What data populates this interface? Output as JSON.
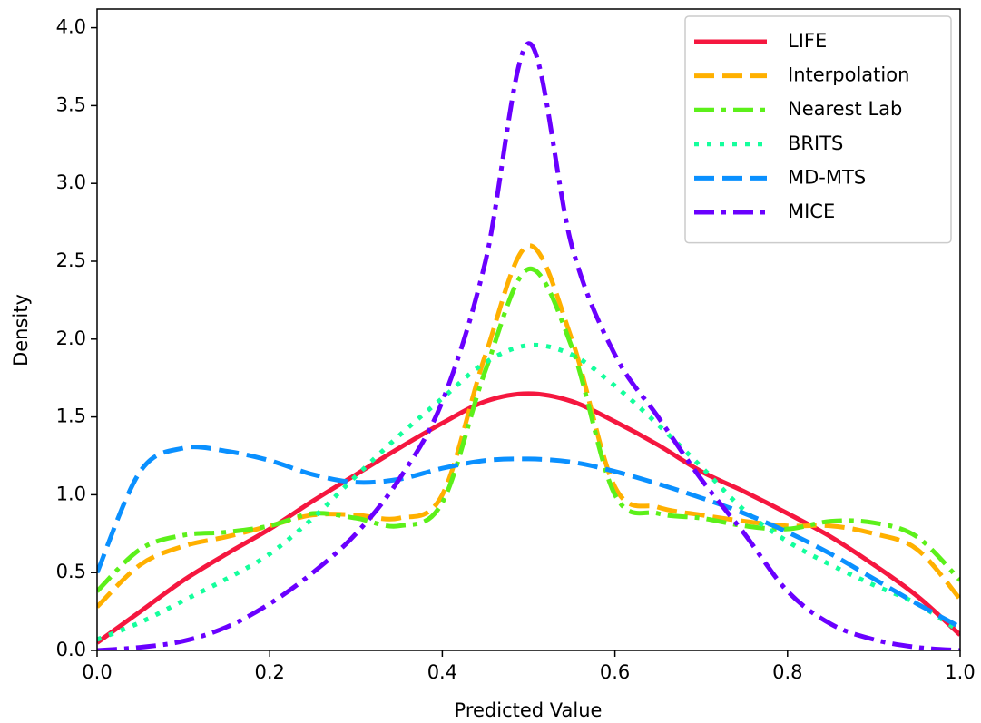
{
  "chart_data": {
    "type": "line",
    "x_label": "Predicted Value",
    "y_label": "Density",
    "x": [
      0,
      0.05,
      0.1,
      0.15,
      0.2,
      0.25,
      0.3,
      0.35,
      0.4,
      0.45,
      0.5,
      0.55,
      0.6,
      0.65,
      0.7,
      0.75,
      0.8,
      0.85,
      0.9,
      0.95,
      1.0
    ],
    "series": [
      {
        "name": "LIFE",
        "color": "#f5173f",
        "linestyle": "solid",
        "values": [
          0.05,
          0.25,
          0.45,
          0.62,
          0.78,
          0.96,
          1.13,
          1.3,
          1.46,
          1.6,
          1.65,
          1.6,
          1.47,
          1.32,
          1.15,
          1.02,
          0.88,
          0.73,
          0.55,
          0.35,
          0.1
        ]
      },
      {
        "name": "Interpolation",
        "color": "#ffb000",
        "linestyle": "dashed",
        "values": [
          0.28,
          0.55,
          0.67,
          0.73,
          0.8,
          0.87,
          0.87,
          0.85,
          1.0,
          1.9,
          2.6,
          2.0,
          1.05,
          0.92,
          0.87,
          0.83,
          0.8,
          0.8,
          0.75,
          0.65,
          0.33
        ]
      },
      {
        "name": "Nearest Lab",
        "color": "#5cf01a",
        "linestyle": "dashdot",
        "values": [
          0.38,
          0.65,
          0.74,
          0.76,
          0.8,
          0.88,
          0.85,
          0.8,
          0.95,
          1.8,
          2.45,
          1.95,
          1.0,
          0.88,
          0.85,
          0.8,
          0.78,
          0.83,
          0.82,
          0.73,
          0.45
        ]
      },
      {
        "name": "BRITS",
        "color": "#14ff9c",
        "linestyle": "dotted",
        "values": [
          0.07,
          0.18,
          0.32,
          0.46,
          0.62,
          0.85,
          1.12,
          1.38,
          1.62,
          1.85,
          1.96,
          1.9,
          1.7,
          1.45,
          1.18,
          0.9,
          0.7,
          0.55,
          0.42,
          0.3,
          0.12
        ]
      },
      {
        "name": "MD-MTS",
        "color": "#0a90ff",
        "linestyle": "dashed",
        "values": [
          0.5,
          1.15,
          1.3,
          1.28,
          1.22,
          1.13,
          1.08,
          1.1,
          1.17,
          1.22,
          1.23,
          1.21,
          1.15,
          1.07,
          0.98,
          0.88,
          0.76,
          0.62,
          0.46,
          0.3,
          0.15
        ]
      },
      {
        "name": "MICE",
        "color": "#6a00ff",
        "linestyle": "dashdot",
        "values": [
          0.0,
          0.02,
          0.06,
          0.15,
          0.3,
          0.5,
          0.75,
          1.1,
          1.6,
          2.5,
          3.9,
          2.6,
          1.9,
          1.5,
          1.1,
          0.75,
          0.38,
          0.17,
          0.07,
          0.02,
          0.0
        ]
      }
    ],
    "xlim": [
      0,
      1
    ],
    "ylim": [
      0,
      4.12
    ],
    "xticks": [
      {
        "value": 0,
        "label": "0.0"
      },
      0.2,
      0.4,
      0.6,
      0.8,
      {
        "value": 1,
        "label": "1.0"
      }
    ],
    "yticks": [
      {
        "value": 0,
        "label": "0.0"
      },
      0.5,
      {
        "value": 1,
        "label": "1.0"
      },
      1.5,
      {
        "value": 2,
        "label": "2.0"
      },
      2.5,
      {
        "value": 3,
        "label": "3.0"
      },
      3.5,
      {
        "value": 4,
        "label": "4.0"
      }
    ],
    "legend": "upper right",
    "grid": false
  }
}
